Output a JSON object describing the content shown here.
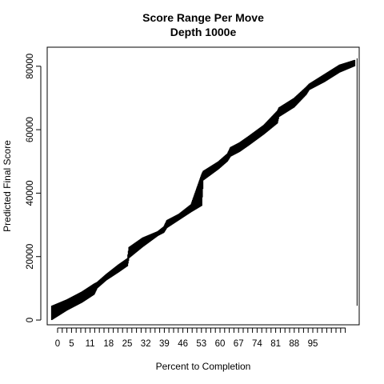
{
  "chart_data": {
    "type": "line",
    "title": "Score Range Per Move",
    "subtitle": "Depth 1000e",
    "xlabel": "Percent to Completion",
    "ylabel": "Predicted Final Score",
    "xlim": [
      -1.5,
      101.5
    ],
    "ylim": [
      -1500,
      86000
    ],
    "x_tick_count": 101,
    "x_tick_labels": [
      "0",
      "5",
      "11",
      "18",
      "25",
      "32",
      "39",
      "46",
      "53",
      "60",
      "67",
      "74",
      "81",
      "88",
      "95"
    ],
    "x_tick_label_values": [
      0,
      3,
      7,
      11,
      15,
      19,
      23,
      27,
      31,
      35,
      39,
      43,
      47,
      51,
      55
    ],
    "y_ticks": [
      0,
      20000,
      40000,
      60000,
      80000
    ],
    "y_tick_labels": [
      "0",
      "20000",
      "40000",
      "60000",
      "80000"
    ],
    "grid": false,
    "legend": "none",
    "series": [
      {
        "kind": "range-segments",
        "x": [
          0,
          5,
          10,
          14,
          15,
          18,
          22,
          25,
          25.5,
          30,
          35,
          37,
          38,
          42,
          46,
          49.5,
          50,
          55,
          58,
          59,
          62,
          65,
          70,
          74.5,
          75,
          80,
          84,
          85,
          90,
          95,
          100
        ],
        "low": [
          0,
          3000,
          5500,
          8000,
          10000,
          12500,
          15000,
          17000,
          19500,
          23000,
          26500,
          27500,
          29000,
          31500,
          34000,
          36000,
          44000,
          47500,
          50000,
          51500,
          53000,
          55000,
          58500,
          62000,
          64000,
          67000,
          71000,
          72500,
          75000,
          78000,
          80000
        ],
        "high": [
          4500,
          6500,
          9000,
          11500,
          12000,
          14500,
          17500,
          19500,
          23000,
          26000,
          28000,
          29500,
          31500,
          33500,
          36500,
          46000,
          47000,
          50000,
          52500,
          54500,
          56000,
          58000,
          61500,
          66000,
          67000,
          70000,
          73500,
          74500,
          77500,
          80500,
          82000
        ]
      }
    ],
    "outlier_segment": {
      "x": 100.8,
      "low": 4500,
      "high": 82500
    },
    "colors": {
      "line": "#000000",
      "axis": "#000000",
      "background": "#ffffff"
    }
  }
}
